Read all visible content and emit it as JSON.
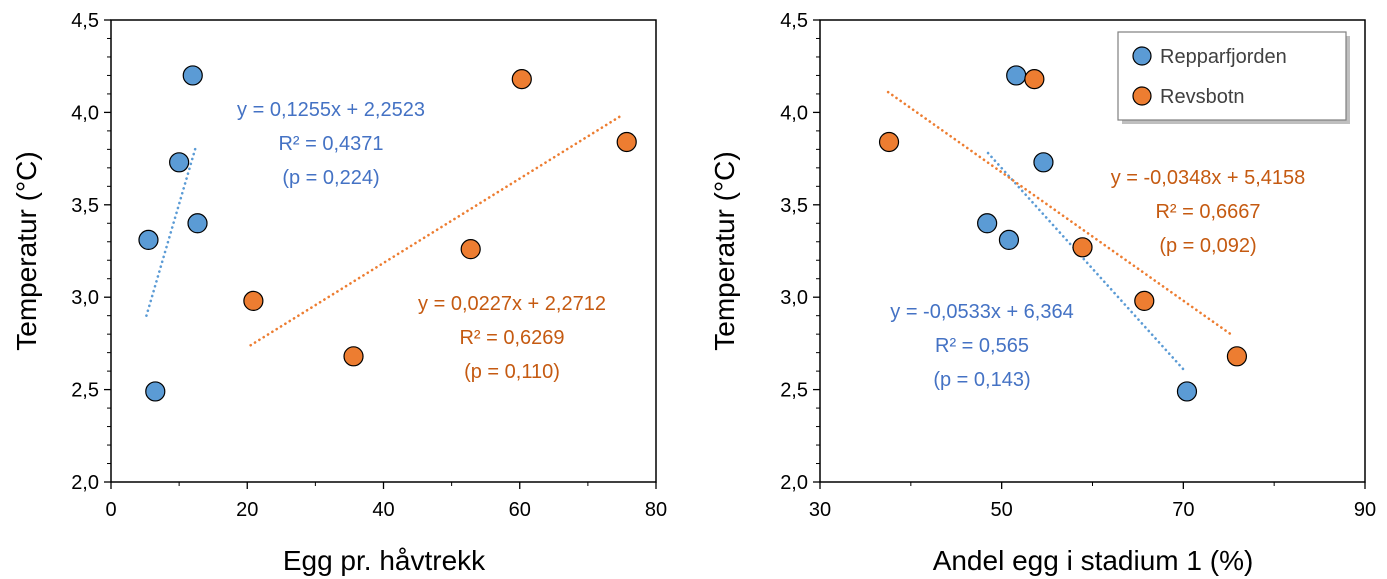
{
  "colors": {
    "repparfjorden": "#5b9bd5",
    "revsbotn": "#ed7d31",
    "repparfjorden_text": "#4472c4",
    "revsbotn_text": "#c55a11"
  },
  "legend": {
    "placement": "top-right of right chart",
    "items": [
      {
        "label": "Repparfjorden",
        "color": "#5b9bd5"
      },
      {
        "label": "Revsbotn",
        "color": "#ed7d31"
      }
    ]
  },
  "chart_data": [
    {
      "type": "scatter",
      "xlabel": "Egg pr. håvtrekk",
      "ylabel": "Temperatur (°C)",
      "xlim": [
        0,
        80
      ],
      "ylim": [
        2.0,
        4.5
      ],
      "xticks": [
        "0",
        "20",
        "40",
        "60",
        "80"
      ],
      "yticks": [
        "2,0",
        "2,5",
        "3,0",
        "3,5",
        "4,0",
        "4,5"
      ],
      "grid": false,
      "series": [
        {
          "name": "Repparfjorden",
          "color": "#5b9bd5",
          "x": [
            12.0,
            5.5,
            10.0,
            12.7,
            6.5
          ],
          "y": [
            4.2,
            3.31,
            3.73,
            3.4,
            2.49
          ],
          "trend": {
            "x": [
              5.2,
              12.5
            ],
            "y": [
              2.9,
              3.82
            ],
            "style": "dotted"
          },
          "annotation": [
            "y = 0,1255x + 2,2523",
            "R² = 0,4371",
            "(p = 0,224)"
          ]
        },
        {
          "name": "Revsbotn",
          "color": "#ed7d31",
          "x": [
            60.3,
            75.7,
            52.8,
            20.9,
            35.6
          ],
          "y": [
            4.18,
            3.84,
            3.26,
            2.98,
            2.68
          ],
          "trend": {
            "x": [
              20.5,
              74.8
            ],
            "y": [
              2.74,
              3.98
            ],
            "style": "dotted"
          },
          "annotation": [
            "y = 0,0227x + 2,2712",
            "R² = 0,6269",
            "(p = 0,110)"
          ]
        }
      ]
    },
    {
      "type": "scatter",
      "xlabel": "Andel egg i stadium 1 (%)",
      "ylabel": "Temperatur (°C)",
      "xlim": [
        30,
        90
      ],
      "ylim": [
        2.0,
        4.5
      ],
      "xticks": [
        "30",
        "50",
        "70",
        "90"
      ],
      "yticks": [
        "2,0",
        "2,5",
        "3,0",
        "3,5",
        "4,0",
        "4,5"
      ],
      "grid": false,
      "series": [
        {
          "name": "Repparfjorden",
          "color": "#5b9bd5",
          "x": [
            51.6,
            54.6,
            48.4,
            50.8,
            70.4
          ],
          "y": [
            4.2,
            3.73,
            3.4,
            3.31,
            2.49
          ],
          "trend": {
            "x": [
              48.5,
              70.0
            ],
            "y": [
              3.78,
              2.61
            ],
            "style": "dotted"
          },
          "annotation": [
            "y = -0,0533x + 6,364",
            "R² = 0,565",
            "(p = 0,143)"
          ]
        },
        {
          "name": "Revsbotn",
          "color": "#ed7d31",
          "x": [
            53.6,
            37.6,
            58.9,
            65.7,
            75.9
          ],
          "y": [
            4.18,
            3.84,
            3.27,
            2.98,
            2.68
          ],
          "trend": {
            "x": [
              37.5,
              75.5
            ],
            "y": [
              4.11,
              2.79
            ],
            "style": "dotted"
          },
          "annotation": [
            "y = -0,0348x + 5,4158",
            "R² = 0,6667",
            "(p = 0,092)"
          ]
        }
      ]
    }
  ]
}
